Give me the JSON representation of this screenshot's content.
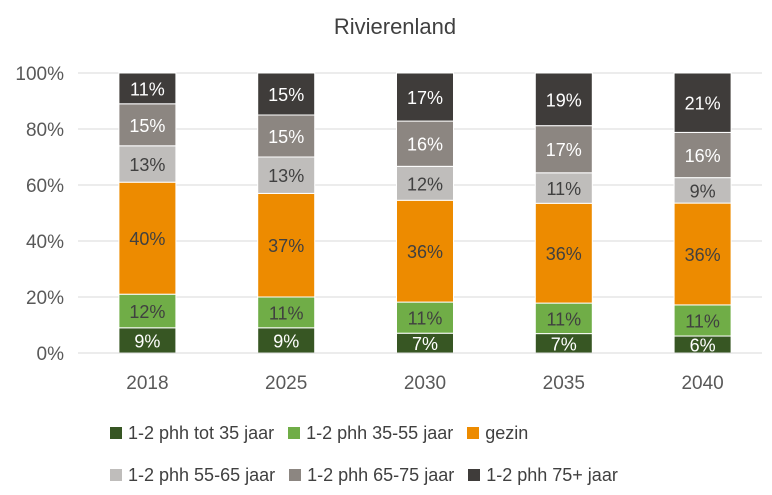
{
  "chart_data": {
    "type": "bar",
    "stacked": true,
    "title": "Rivierenland",
    "categories": [
      "2018",
      "2025",
      "2030",
      "2035",
      "2040"
    ],
    "ylim": [
      0,
      100
    ],
    "yticks": [
      0,
      20,
      40,
      60,
      80,
      100
    ],
    "ytick_labels": [
      "0%",
      "20%",
      "40%",
      "60%",
      "80%",
      "100%"
    ],
    "legend_position": "bottom",
    "series": [
      {
        "name": "1-2 phh tot 35 jaar",
        "color": "#375623",
        "label_color": "#ffffff",
        "values": [
          9,
          9,
          7,
          7,
          6
        ],
        "labels": [
          "9%",
          "9%",
          "7%",
          "7%",
          "6%"
        ]
      },
      {
        "name": "1-2 phh 35-55 jaar",
        "color": "#70ad47",
        "label_color": "#404040",
        "values": [
          12,
          11,
          11,
          11,
          11
        ],
        "labels": [
          "12%",
          "11%",
          "11%",
          "11%",
          "11%"
        ]
      },
      {
        "name": "gezin",
        "color": "#ed8b00",
        "label_color": "#404040",
        "values": [
          40,
          37,
          36,
          36,
          36
        ],
        "labels": [
          "40%",
          "37%",
          "36%",
          "36%",
          "36%"
        ]
      },
      {
        "name": "1-2 phh 55-65 jaar",
        "color": "#bfbdbb",
        "label_color": "#404040",
        "values": [
          13,
          13,
          12,
          11,
          9
        ],
        "labels": [
          "13%",
          "13%",
          "12%",
          "11%",
          "9%"
        ]
      },
      {
        "name": "1-2 phh 65-75 jaar",
        "color": "#8c8681",
        "label_color": "#ffffff",
        "values": [
          15,
          15,
          16,
          17,
          16
        ],
        "labels": [
          "15%",
          "15%",
          "16%",
          "17%",
          "16%"
        ]
      },
      {
        "name": "1-2 phh 75+ jaar",
        "color": "#3f3c3a",
        "label_color": "#ffffff",
        "values": [
          11,
          15,
          17,
          19,
          21
        ],
        "labels": [
          "11%",
          "15%",
          "17%",
          "19%",
          "21%"
        ]
      }
    ]
  }
}
